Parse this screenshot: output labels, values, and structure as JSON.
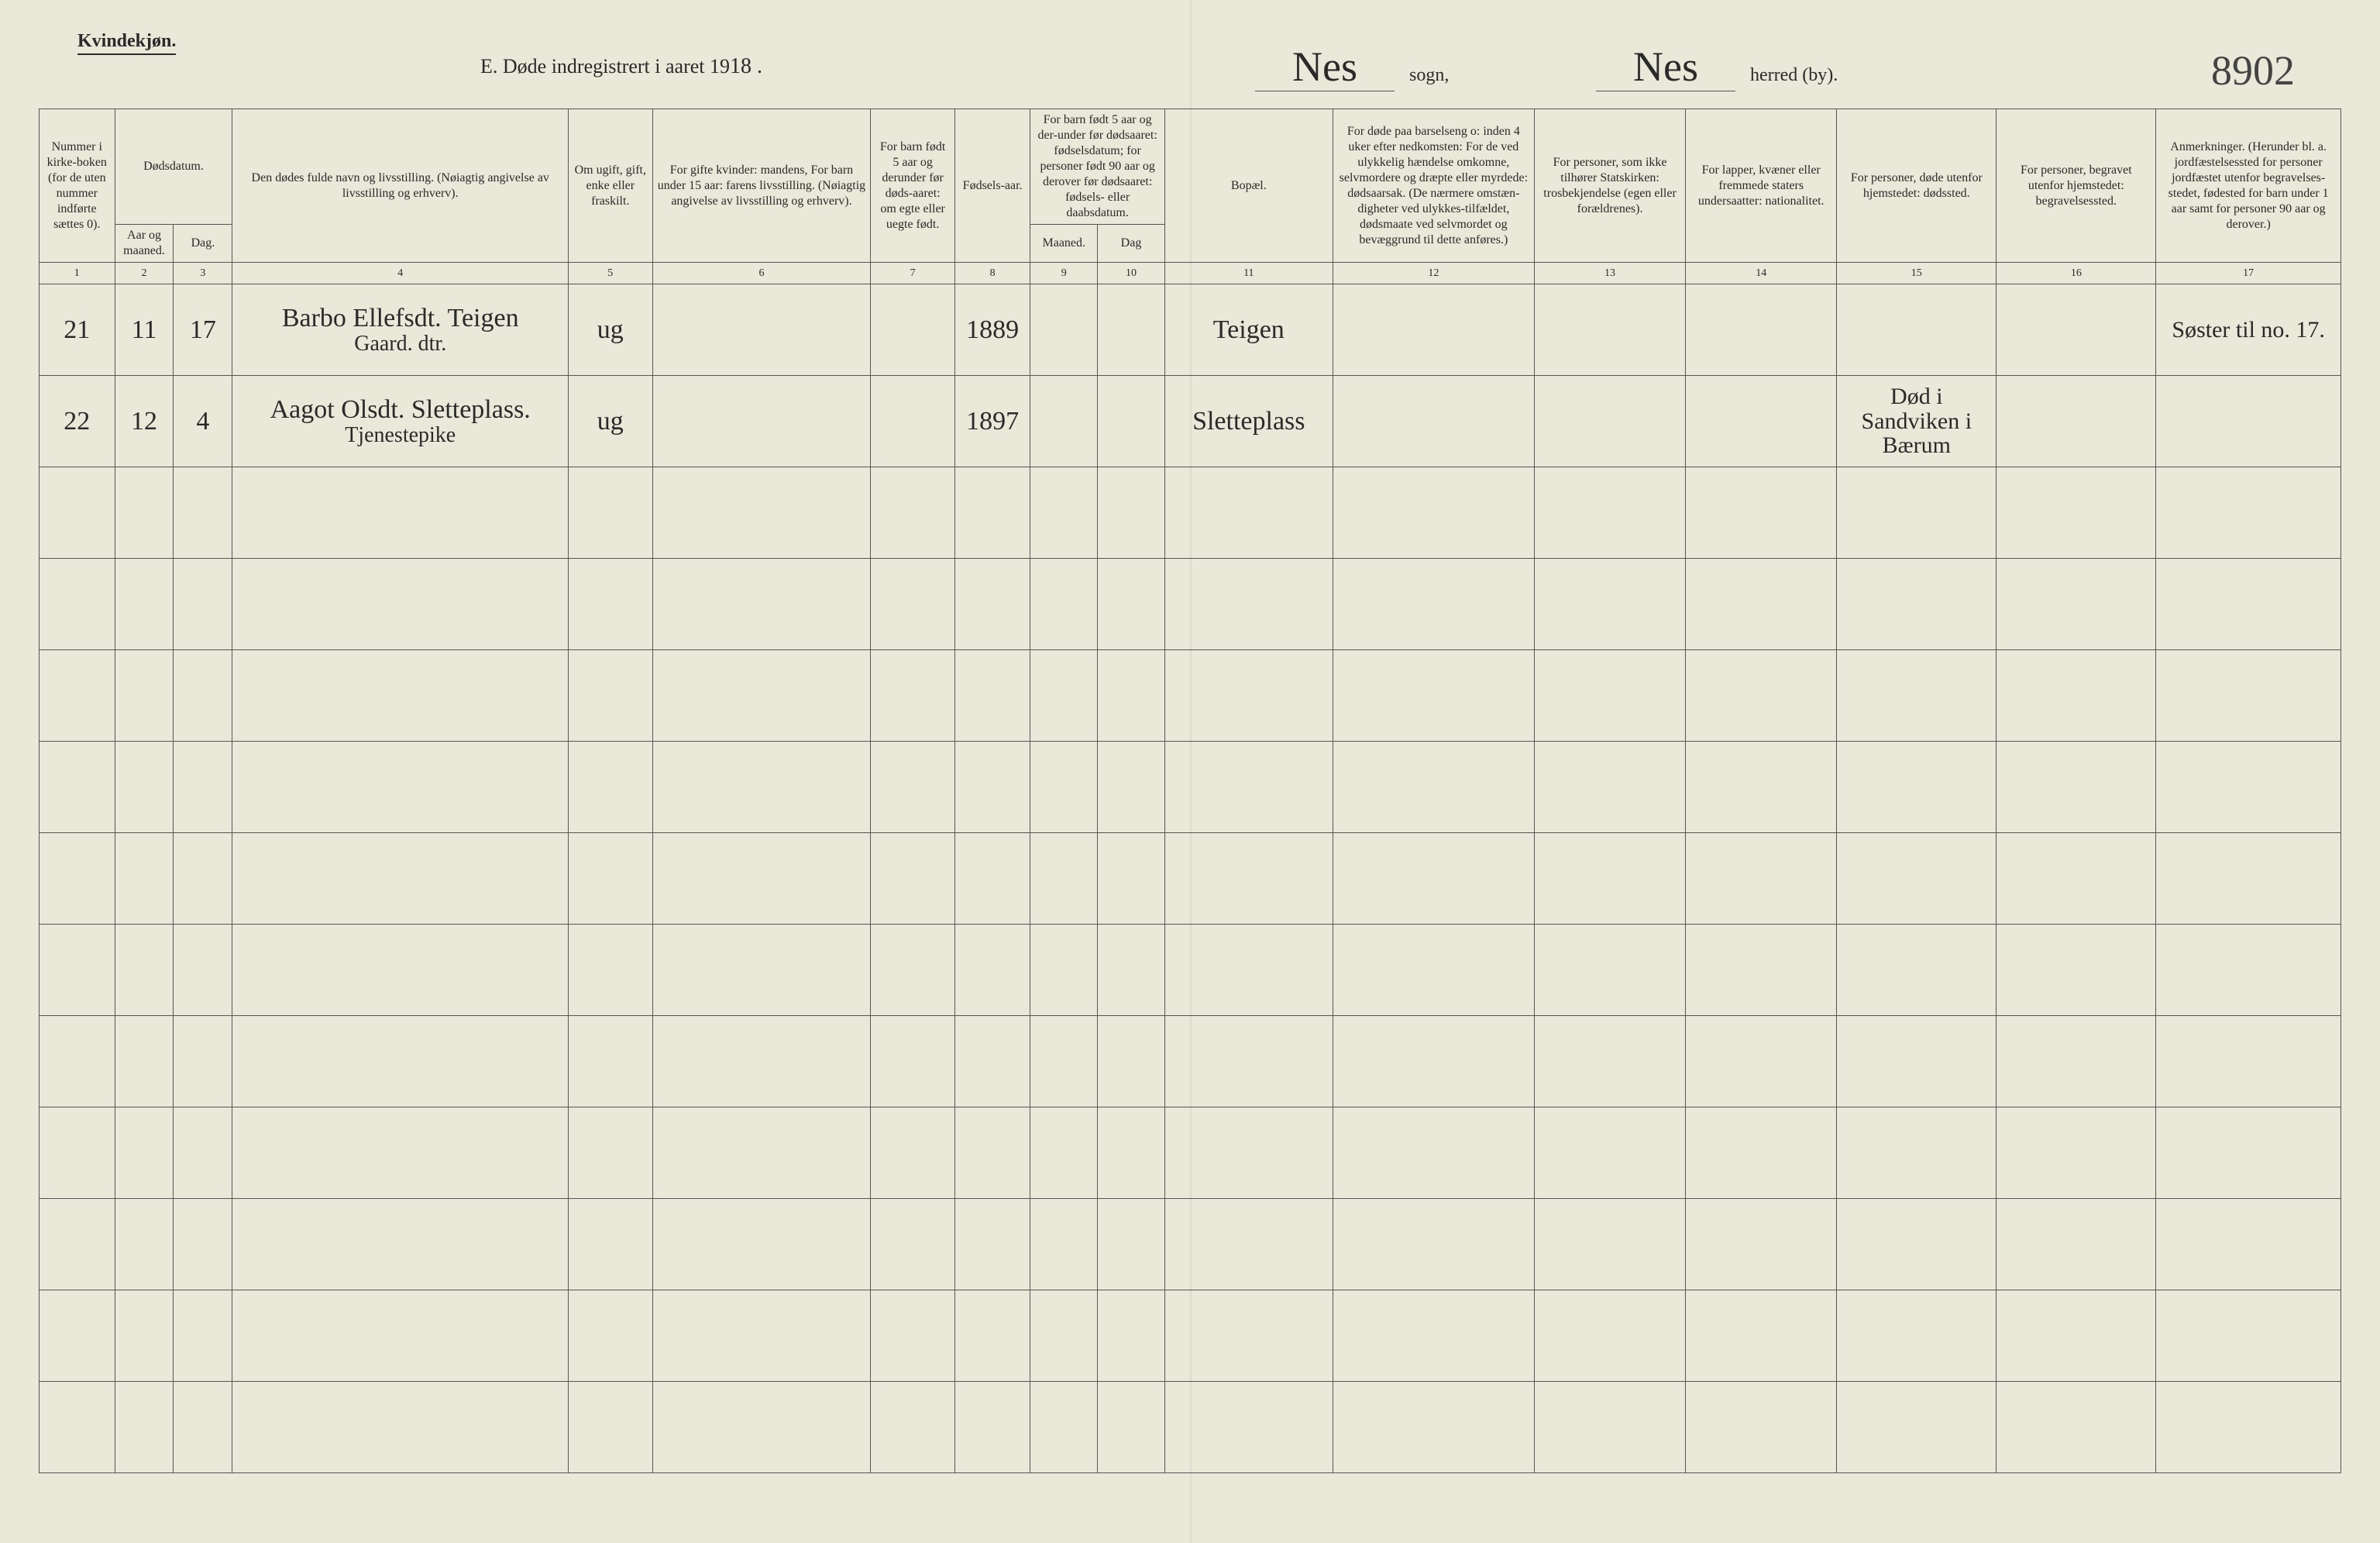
{
  "page": {
    "gender_label": "Kvindekjøn.",
    "title_prefix": "E.  Døde indregistrert i aaret 19",
    "title_year_suffix": "18 .",
    "sogn_value": "Nes",
    "sogn_label": "sogn,",
    "herred_value": "Nes",
    "herred_label": "herred (by).",
    "page_number": "8902"
  },
  "headers": {
    "c1": "Nummer i kirke-boken (for de uten nummer indførte sættes 0).",
    "c2_group": "Dødsdatum.",
    "c2": "Aar og maaned.",
    "c3": "Dag.",
    "c4": "Den dødes fulde navn og livsstilling. (Nøiagtig angivelse av livsstilling og erhverv).",
    "c5": "Om ugift, gift, enke eller fraskilt.",
    "c6": "For gifte kvinder: mandens, For barn under 15 aar: farens livsstilling. (Nøiagtig angivelse av livsstilling og erhverv).",
    "c7": "For barn født 5 aar og derunder før døds-aaret: om egte eller uegte født.",
    "c8": "Fødsels-aar.",
    "c9_10_group": "For barn født 5 aar og der-under før dødsaaret: fødselsdatum; for personer født 90 aar og derover før dødsaaret: fødsels- eller daabsdatum.",
    "c9": "Maaned.",
    "c10": "Dag",
    "c11": "Bopæl.",
    "c12": "For døde paa barselseng o: inden 4 uker efter nedkomsten:  For de ved ulykkelig hændelse omkomne, selvmordere og dræpte eller myrdede: dødsaarsak. (De nærmere omstæn-digheter ved ulykkes-tilfældet, dødsmaate ved selvmordet og bevæggrund til dette anføres.)",
    "c13": "For personer, som ikke tilhører Statskirken: trosbekjendelse (egen eller forældrenes).",
    "c14": "For lapper, kvæner eller fremmede staters undersaatter: nationalitet.",
    "c15": "For personer, døde utenfor hjemstedet: dødssted.",
    "c16": "For personer, begravet utenfor hjemstedet: begravelsessted.",
    "c17": "Anmerkninger. (Herunder bl. a. jordfæstelsessted for personer jordfæstet utenfor begravelses-stedet, fødested for barn under 1 aar samt for personer 90 aar og derover.)"
  },
  "colnums": [
    "1",
    "2",
    "3",
    "4",
    "5",
    "6",
    "7",
    "8",
    "9",
    "10",
    "11",
    "12",
    "13",
    "14",
    "15",
    "16",
    "17"
  ],
  "rows": [
    {
      "num": "21",
      "month": "11",
      "day": "17",
      "name_line1": "Barbo Ellefsdt. Teigen",
      "name_line2": "Gaard. dtr.",
      "status": "ug",
      "c6": "",
      "c7": "",
      "birth_year": "1889",
      "c9": "",
      "c10": "",
      "residence": "Teigen",
      "c12": "",
      "c13": "",
      "c14": "",
      "c15": "",
      "c16": "",
      "remarks": "Søster til no. 17."
    },
    {
      "num": "22",
      "month": "12",
      "day": "4",
      "name_line1": "Aagot Olsdt. Sletteplass.",
      "name_line2": "Tjenestepike",
      "status": "ug",
      "c6": "",
      "c7": "",
      "birth_year": "1897",
      "c9": "",
      "c10": "",
      "residence": "Sletteplass",
      "c12": "",
      "c13": "",
      "c14": "",
      "c15": "Død i Sandviken i Bærum",
      "c16": "",
      "remarks": ""
    }
  ],
  "blank_row_count": 11,
  "colors": {
    "paper": "#eae8d8",
    "ink": "#2a2a2a",
    "rule": "#555555"
  }
}
